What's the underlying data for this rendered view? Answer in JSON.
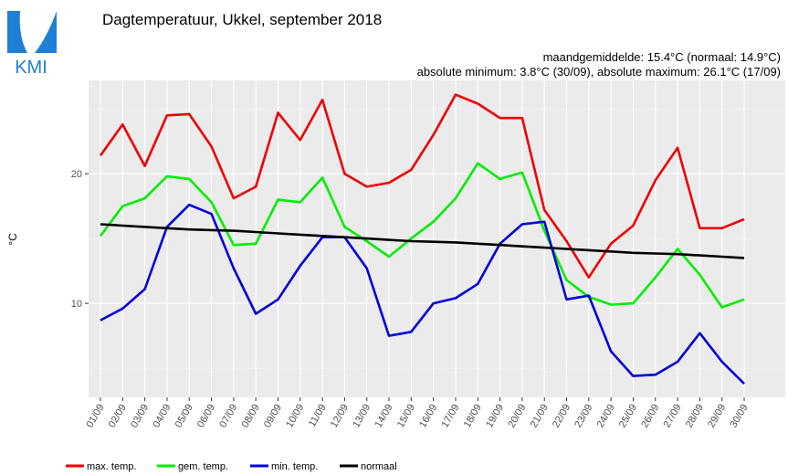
{
  "chart_data": {
    "type": "line",
    "logo_text": "KMI",
    "title": "Dagtemperatuur, Ukkel, september 2018",
    "subtitle": [
      "maandgemiddelde: 15.4°C (normaal: 14.9°C)",
      "absolute minimum: 3.8°C (30/09), absolute maximum: 26.1°C (17/09)"
    ],
    "y_label": "°C",
    "categories": [
      "01/09",
      "02/09",
      "03/09",
      "04/09",
      "05/09",
      "06/09",
      "07/09",
      "08/09",
      "09/09",
      "10/09",
      "11/09",
      "12/09",
      "13/09",
      "14/09",
      "15/09",
      "16/09",
      "17/09",
      "18/09",
      "19/09",
      "20/09",
      "21/09",
      "22/09",
      "23/09",
      "24/09",
      "25/09",
      "26/09",
      "27/09",
      "28/09",
      "29/09",
      "30/09"
    ],
    "series": [
      {
        "name": "max. temp.",
        "color": "#ee0000",
        "values": [
          21.4,
          23.8,
          20.6,
          24.5,
          24.6,
          22.1,
          18.1,
          19.0,
          24.7,
          22.6,
          25.7,
          20.0,
          19.0,
          19.3,
          20.3,
          23.0,
          26.1,
          25.4,
          24.3,
          24.3,
          17.2,
          14.8,
          12.0,
          14.6,
          16.0,
          19.5,
          22.0,
          15.8,
          15.8,
          16.5
        ]
      },
      {
        "name": "gem. temp.",
        "color": "#00ee00",
        "values": [
          15.2,
          17.5,
          18.1,
          19.8,
          19.6,
          17.8,
          14.5,
          14.6,
          18.0,
          17.8,
          19.7,
          15.9,
          14.8,
          13.6,
          15.0,
          16.3,
          18.1,
          20.8,
          19.6,
          20.1,
          15.6,
          11.8,
          10.5,
          9.9,
          10.0,
          12.0,
          14.2,
          12.2,
          9.7,
          10.3
        ]
      },
      {
        "name": "min. temp.",
        "color": "#0000dd",
        "values": [
          8.7,
          9.6,
          11.1,
          15.9,
          17.6,
          16.9,
          12.7,
          9.2,
          10.3,
          12.9,
          15.1,
          15.1,
          12.7,
          7.5,
          7.8,
          10.0,
          10.4,
          11.5,
          14.6,
          16.1,
          16.3,
          10.3,
          10.6,
          6.3,
          4.4,
          4.5,
          5.5,
          7.7,
          5.5,
          3.8
        ]
      },
      {
        "name": "normaal",
        "color": "#000000",
        "values": [
          16.1,
          16.0,
          15.9,
          15.8,
          15.7,
          15.65,
          15.6,
          15.5,
          15.4,
          15.3,
          15.2,
          15.1,
          15.0,
          14.9,
          14.8,
          14.75,
          14.7,
          14.6,
          14.5,
          14.4,
          14.3,
          14.2,
          14.1,
          14.0,
          13.9,
          13.85,
          13.8,
          13.7,
          13.6,
          13.5
        ]
      }
    ],
    "ylim": [
      2.75,
      27.2
    ],
    "yticks": [
      10,
      20
    ],
    "minor_yticks": [
      5,
      15,
      25
    ],
    "grid": true,
    "legend": "bottom"
  }
}
